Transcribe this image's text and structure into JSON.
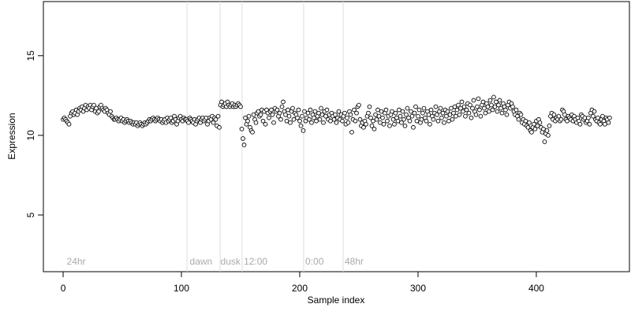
{
  "chart_data": {
    "type": "scatter",
    "xlabel": "Sample index",
    "ylabel": "Expression",
    "xlim": [
      -16.7,
      478.7
    ],
    "ylim": [
      1.44,
      18.4
    ],
    "xticks": [
      0,
      100,
      200,
      300,
      400
    ],
    "yticks": [
      5,
      10,
      15
    ],
    "point_fill": "#ffffff",
    "point_stroke": "#000000",
    "vline_color": "#dddddd",
    "vlines": [
      104.7,
      132.7,
      151.3,
      203.3,
      236.7
    ],
    "annotations": [
      {
        "text": "24hr",
        "x": 3,
        "y": 2.03
      },
      {
        "text": "dawn",
        "x": 107,
        "y": 2.03
      },
      {
        "text": "dusk",
        "x": 133,
        "y": 2.03
      },
      {
        "text": "12:00",
        "x": 152.7,
        "y": 2.03
      },
      {
        "text": "0:00",
        "x": 204.7,
        "y": 2.03
      },
      {
        "text": "48hr",
        "x": 238,
        "y": 2.03
      }
    ],
    "values": [
      11.0,
      11.1,
      11.0,
      10.9,
      10.8,
      10.7,
      11.2,
      11.4,
      11.5,
      11.3,
      11.4,
      11.6,
      11.3,
      11.5,
      11.7,
      11.6,
      11.8,
      11.5,
      11.7,
      11.9,
      11.6,
      11.8,
      11.7,
      11.9,
      11.6,
      11.8,
      11.9,
      11.5,
      11.7,
      11.4,
      11.5,
      11.8,
      11.9,
      11.7,
      11.6,
      11.5,
      11.7,
      11.6,
      11.4,
      11.3,
      11.5,
      11.2,
      11.1,
      11.0,
      11.0,
      11.1,
      11.0,
      10.9,
      11.0,
      11.1,
      10.9,
      11.0,
      10.8,
      10.9,
      11.0,
      10.9,
      10.8,
      10.9,
      10.8,
      10.7,
      10.8,
      10.7,
      10.8,
      10.6,
      10.7,
      10.8,
      10.7,
      10.6,
      10.7,
      10.8,
      10.7,
      10.8,
      10.9,
      11.0,
      10.9,
      11.0,
      11.1,
      11.0,
      10.9,
      11.0,
      11.1,
      11.0,
      10.9,
      11.0,
      10.8,
      10.9,
      11.0,
      10.8,
      11.1,
      10.9,
      11.0,
      11.1,
      10.8,
      10.9,
      11.2,
      11.0,
      10.7,
      10.9,
      11.1,
      11.2,
      11.0,
      10.9,
      11.1,
      11.0,
      11.0,
      10.9,
      10.8,
      11.1,
      11.0,
      10.9,
      10.8,
      11.0,
      10.7,
      10.9,
      11.0,
      11.1,
      10.8,
      11.0,
      11.1,
      10.9,
      11.0,
      11.1,
      10.7,
      10.9,
      11.1,
      11.0,
      11.2,
      10.8,
      11.1,
      11.0,
      10.6,
      11.2,
      10.5,
      11.9,
      12.1,
      11.8,
      11.9,
      12.0,
      11.8,
      12.1,
      11.9,
      11.8,
      11.9,
      12.0,
      11.8,
      11.9,
      11.8,
      11.9,
      12.0,
      11.9,
      11.8,
      10.4,
      9.8,
      9.4,
      11.1,
      10.7,
      10.9,
      11.2,
      10.5,
      10.3,
      10.2,
      11.3,
      11.0,
      10.8,
      11.4,
      11.5,
      11.2,
      11.3,
      11.6,
      10.9,
      11.5,
      10.7,
      11.6,
      11.4,
      11.1,
      11.5,
      11.6,
      11.3,
      10.8,
      11.7,
      11.5,
      11.6,
      11.2,
      11.4,
      11.0,
      11.8,
      12.1,
      11.5,
      11.3,
      10.9,
      11.6,
      11.2,
      10.8,
      11.5,
      11.7,
      11.0,
      11.4,
      11.3,
      11.1,
      11.6,
      10.9,
      10.6,
      11.2,
      10.3,
      11.5,
      10.9,
      11.1,
      11.4,
      11.0,
      11.6,
      10.8,
      11.3,
      11.1,
      11.5,
      10.9,
      11.2,
      11.4,
      11.0,
      11.7,
      11.3,
      10.8,
      11.5,
      11.2,
      11.6,
      11.0,
      11.3,
      10.9,
      11.4,
      11.2,
      11.0,
      11.3,
      10.8,
      11.1,
      11.5,
      11.0,
      11.3,
      10.9,
      11.2,
      11.4,
      10.7,
      11.1,
      10.8,
      11.5,
      11.3,
      10.2,
      11.0,
      11.6,
      10.9,
      11.4,
      11.8,
      11.9,
      11.0,
      10.6,
      10.8,
      10.5,
      10.9,
      10.7,
      11.2,
      11.4,
      11.8,
      11.1,
      10.6,
      10.9,
      10.4,
      11.3,
      11.0,
      11.6,
      11.2,
      10.8,
      11.5,
      11.1,
      10.7,
      11.4,
      11.6,
      10.9,
      11.2,
      10.6,
      11.3,
      11.5,
      11.0,
      10.7,
      11.4,
      11.1,
      10.9,
      11.6,
      11.2,
      10.8,
      11.5,
      11.0,
      10.6,
      11.3,
      11.7,
      11.1,
      10.9,
      11.5,
      11.2,
      10.5,
      11.4,
      11.8,
      10.9,
      11.2,
      11.6,
      10.8,
      11.0,
      11.4,
      11.7,
      11.1,
      10.9,
      11.5,
      11.3,
      10.7,
      11.6,
      11.2,
      11.0,
      11.4,
      11.8,
      11.3,
      10.9,
      11.5,
      11.7,
      11.1,
      11.4,
      10.8,
      11.6,
      11.2,
      11.5,
      10.9,
      11.3,
      11.7,
      11.0,
      11.4,
      11.8,
      11.2,
      11.6,
      11.9,
      11.3,
      11.7,
      12.1,
      11.5,
      11.8,
      11.2,
      11.6,
      12.0,
      11.4,
      11.9,
      11.1,
      11.7,
      12.2,
      11.5,
      11.3,
      11.8,
      12.3,
      11.6,
      11.2,
      11.9,
      12.1,
      11.7,
      11.4,
      12.0,
      11.8,
      11.5,
      12.2,
      11.9,
      11.6,
      12.4,
      11.8,
      12.1,
      11.5,
      11.9,
      12.2,
      11.7,
      11.4,
      12.0,
      11.8,
      11.6,
      11.3,
      11.9,
      12.1,
      11.7,
      12.0,
      11.8,
      11.5,
      11.3,
      11.6,
      11.2,
      11.0,
      11.4,
      11.3,
      10.8,
      11.0,
      10.7,
      10.9,
      10.6,
      10.5,
      10.8,
      10.3,
      10.2,
      10.5,
      10.7,
      10.4,
      10.9,
      10.6,
      11.0,
      10.8,
      10.5,
      10.2,
      10.4,
      9.6,
      10.1,
      10.3,
      10.0,
      10.6,
      11.2,
      11.4,
      11.0,
      11.3,
      10.9,
      11.1,
      11.0,
      11.2,
      10.9,
      11.0,
      11.6,
      11.5,
      11.3,
      11.0,
      10.9,
      11.2,
      11.1,
      11.0,
      11.3,
      10.9,
      11.2,
      11.0,
      10.8,
      11.1,
      10.9,
      10.7,
      11.3,
      11.2,
      11.0,
      11.1,
      10.8,
      10.9,
      11.1,
      10.7,
      11.4,
      11.6,
      11.2,
      11.5,
      11.0,
      10.9,
      11.1,
      10.8,
      10.7,
      11.0,
      11.2,
      10.9,
      10.7,
      11.1,
      11.0,
      10.8,
      11.1
    ]
  }
}
